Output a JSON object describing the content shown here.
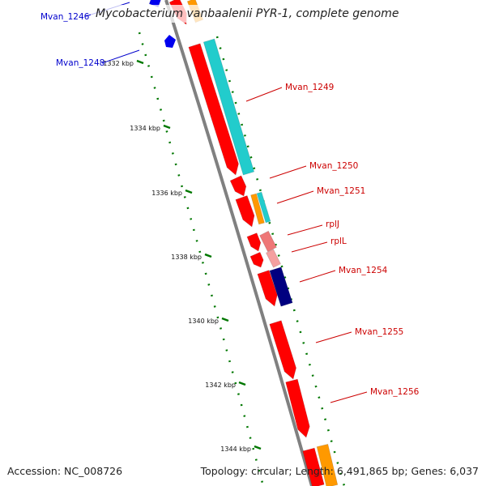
{
  "title": "Mycobacterium vanbaalenii PYR-1, complete genome",
  "accession": "Accession: NC_008726",
  "summary": "Topology: circular; Length: 6,491,865 bp; Genes: 6,037",
  "colors": {
    "backbone": "#808080",
    "forward_gene": "#ff0000",
    "cyan": "#22cccc",
    "orange": "#ff9900",
    "pink": "#ee7777",
    "navy": "#000080",
    "tick": "#007700",
    "label_red": "#cc0000",
    "label_blue": "#0000cc"
  },
  "ticks": [
    {
      "label": "1332 kbp"
    },
    {
      "label": "1334 kbp"
    },
    {
      "label": "1336 kbp"
    },
    {
      "label": "1338 kbp"
    },
    {
      "label": "1340 kbp"
    },
    {
      "label": "1342 kbp"
    },
    {
      "label": "1344 kbp"
    }
  ],
  "gene_labels": [
    {
      "name": "Mvan_1246",
      "color": "blue"
    },
    {
      "name": "Mvan_1248",
      "color": "blue"
    },
    {
      "name": "Mvan_1249",
      "color": "red"
    },
    {
      "name": "Mvan_1250",
      "color": "red"
    },
    {
      "name": "Mvan_1251",
      "color": "red"
    },
    {
      "name": "rplJ",
      "color": "red"
    },
    {
      "name": "rplL",
      "color": "red"
    },
    {
      "name": "Mvan_1254",
      "color": "red"
    },
    {
      "name": "Mvan_1255",
      "color": "red"
    },
    {
      "name": "Mvan_1256",
      "color": "red"
    }
  ]
}
